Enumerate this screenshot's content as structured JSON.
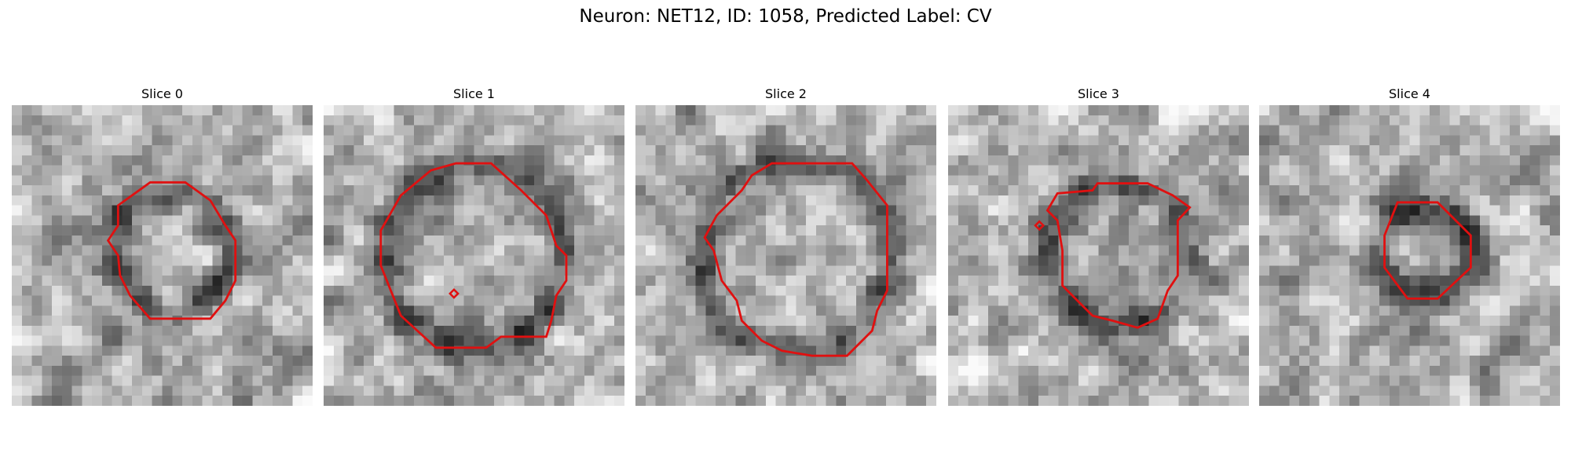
{
  "title": "Neuron: NET12, ID: 1058, Predicted Label: CV",
  "panels": [
    {
      "title": "Slice 0"
    },
    {
      "title": "Slice 1"
    },
    {
      "title": "Slice 2"
    },
    {
      "title": "Slice 3"
    },
    {
      "title": "Slice 4"
    }
  ]
}
